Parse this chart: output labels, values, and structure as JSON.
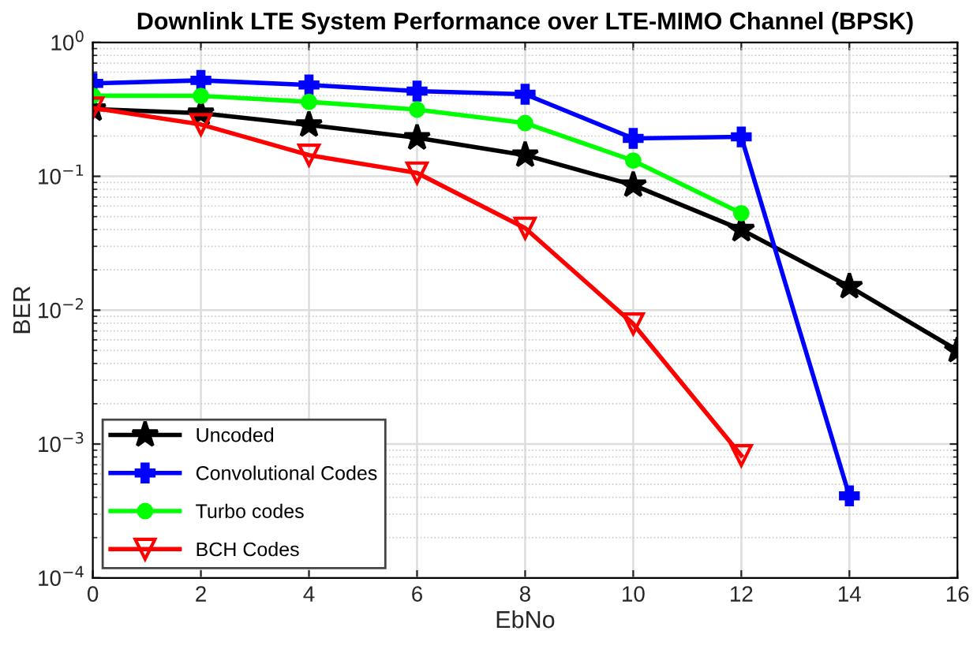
{
  "chart_data": {
    "type": "line",
    "title": "Downlink LTE System Performance over LTE-MIMO Channel (BPSK)",
    "xlabel": "EbNo",
    "ylabel": "BER",
    "x": [
      0,
      2,
      4,
      6,
      8,
      10,
      12,
      14,
      16
    ],
    "series": [
      {
        "name": "Uncoded",
        "color": "#000000",
        "marker": "star",
        "values": [
          0.318,
          0.296,
          0.242,
          0.194,
          0.144,
          0.086,
          0.04,
          0.015,
          0.005
        ]
      },
      {
        "name": "Convolutional Codes",
        "color": "#0000ff",
        "marker": "cross",
        "values": [
          0.494,
          0.521,
          0.481,
          0.433,
          0.41,
          0.192,
          0.197,
          0.00041,
          null
        ]
      },
      {
        "name": "Turbo codes",
        "color": "#00ff00",
        "marker": "circle",
        "values": [
          0.4,
          0.399,
          0.36,
          0.315,
          0.25,
          0.131,
          0.053,
          null,
          null
        ]
      },
      {
        "name": "BCH Codes",
        "color": "#ff0000",
        "marker": "triangle",
        "values": [
          0.324,
          0.244,
          0.144,
          0.106,
          0.041,
          0.0079,
          0.00082,
          null,
          null
        ]
      }
    ],
    "log": "y",
    "xlim": [
      0,
      16
    ],
    "xticks": [
      0,
      2,
      4,
      6,
      8,
      10,
      12,
      14,
      16
    ],
    "ylim": [
      0.0001,
      1
    ],
    "yticks": [
      {
        "value": 0.0001,
        "label": "10$^{−4}$"
      },
      {
        "value": 0.001,
        "label": "10$^{−3}$"
      },
      {
        "value": 0.01,
        "label": "10$^{−2}$"
      },
      {
        "value": 0.1,
        "label": "10$^{−1}$"
      },
      {
        "value": 1,
        "label": "10$^{0}$"
      }
    ],
    "grid": true,
    "legend": "bottom left",
    "line_style": "solid"
  }
}
